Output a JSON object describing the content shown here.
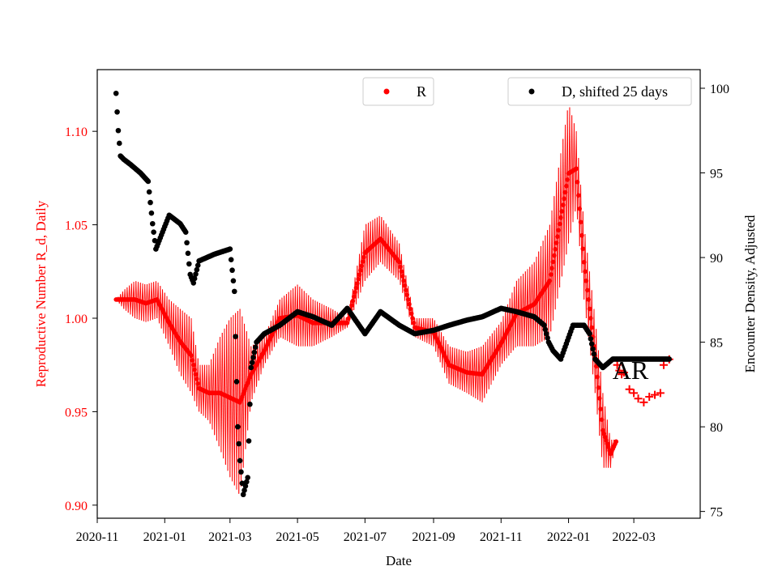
{
  "chart_data": {
    "type": "scatter",
    "xlabel": "Date",
    "ylabel_left": "Reproductive Number R_d, Daily",
    "ylabel_right": "Encounter Density, Adjusted",
    "x_range": [
      "2020-11-01",
      "2022-04-30"
    ],
    "ylim_left": [
      0.893,
      1.133
    ],
    "ylim_right": [
      74.6,
      101.1
    ],
    "x_ticks": [
      "2020-11",
      "2021-01",
      "2021-03",
      "2021-05",
      "2021-07",
      "2021-09",
      "2021-11",
      "2022-01",
      "2022-03"
    ],
    "yticks_left": [
      "0.90",
      "0.95",
      "1.00",
      "1.05",
      "1.10"
    ],
    "yticks_right": [
      "75",
      "80",
      "85",
      "90",
      "95",
      "100"
    ],
    "colors": {
      "R": "#ff0000",
      "D": "#000000",
      "left_axis": "#ff0000"
    },
    "legend_left": {
      "label": "R",
      "placement": "upper-center"
    },
    "legend_right": {
      "label": "D, shifted 25 days",
      "placement": "upper-right"
    },
    "annotation": {
      "text": "AR",
      "date": "2022-02-26",
      "value": 83.4
    },
    "series": [
      {
        "name": "R",
        "axis": "left",
        "marker": "point",
        "oscillation": "daily values alternate between upper and lower envelope",
        "dates": [
          "2020-11-18",
          "2020-11-25",
          "2020-12-05",
          "2020-12-15",
          "2020-12-25",
          "2021-01-05",
          "2021-01-15",
          "2021-01-25",
          "2021-02-01",
          "2021-02-10",
          "2021-02-20",
          "2021-03-01",
          "2021-03-10",
          "2021-03-20",
          "2021-04-01",
          "2021-04-15",
          "2021-05-01",
          "2021-05-15",
          "2021-06-01",
          "2021-06-15",
          "2021-07-01",
          "2021-07-15",
          "2021-08-01",
          "2021-08-15",
          "2021-09-01",
          "2021-09-15",
          "2021-10-01",
          "2021-10-15",
          "2021-11-01",
          "2021-11-15",
          "2021-12-01",
          "2021-12-15",
          "2022-01-01",
          "2022-01-08",
          "2022-01-15",
          "2022-01-25",
          "2022-02-01",
          "2022-02-08",
          "2022-02-13"
        ],
        "upper": [
          1.01,
          1.015,
          1.02,
          1.018,
          1.02,
          1.01,
          1.005,
          1.0,
          0.975,
          0.975,
          0.99,
          1.0,
          1.005,
          0.985,
          0.99,
          1.01,
          1.018,
          1.01,
          1.005,
          1.0,
          1.05,
          1.055,
          1.04,
          1.0,
          1.0,
          0.985,
          0.982,
          0.985,
          0.998,
          1.02,
          1.03,
          1.05,
          1.115,
          1.1,
          1.05,
          1.0,
          0.96,
          0.935,
          0.935
        ],
        "lower": [
          1.01,
          1.005,
          1.0,
          0.998,
          1.0,
          0.985,
          0.97,
          0.96,
          0.95,
          0.945,
          0.93,
          0.915,
          0.905,
          0.955,
          0.975,
          0.99,
          0.985,
          0.985,
          0.99,
          0.995,
          1.02,
          1.03,
          1.02,
          0.99,
          0.985,
          0.965,
          0.96,
          0.955,
          0.975,
          0.985,
          0.985,
          0.99,
          1.04,
          1.06,
          1.01,
          0.96,
          0.92,
          0.92,
          0.933
        ]
      },
      {
        "name": "R (plus markers)",
        "axis": "left",
        "marker": "plus",
        "dates": [
          "2022-02-14",
          "2022-02-16",
          "2022-02-18",
          "2022-02-20",
          "2022-02-25",
          "2022-03-01",
          "2022-03-05",
          "2022-03-10",
          "2022-03-15",
          "2022-03-20",
          "2022-03-25",
          "2022-03-28",
          "2022-04-02"
        ],
        "values": [
          0.975,
          0.972,
          0.97,
          0.971,
          0.962,
          0.96,
          0.957,
          0.955,
          0.958,
          0.959,
          0.96,
          0.975,
          0.978
        ]
      },
      {
        "name": "D, shifted 25 days",
        "axis": "right",
        "marker": "point",
        "dates": [
          "2020-11-18",
          "2020-11-20",
          "2020-11-22",
          "2020-11-25",
          "2020-12-01",
          "2020-12-10",
          "2020-12-17",
          "2020-12-21",
          "2020-12-24",
          "2021-01-05",
          "2021-01-15",
          "2021-01-20",
          "2021-01-24",
          "2021-01-27",
          "2021-02-01",
          "2021-02-15",
          "2021-03-01",
          "2021-03-05",
          "2021-03-08",
          "2021-03-10",
          "2021-03-13",
          "2021-03-17",
          "2021-03-20",
          "2021-03-25",
          "2021-04-01",
          "2021-04-15",
          "2021-05-01",
          "2021-05-15",
          "2021-06-01",
          "2021-06-15",
          "2021-07-01",
          "2021-07-15",
          "2021-08-01",
          "2021-08-15",
          "2021-09-01",
          "2021-09-15",
          "2021-10-01",
          "2021-10-15",
          "2021-11-01",
          "2021-11-15",
          "2021-12-01",
          "2021-12-10",
          "2021-12-14",
          "2021-12-18",
          "2021-12-25",
          "2022-01-05",
          "2022-01-15",
          "2022-01-20",
          "2022-01-25",
          "2022-02-01",
          "2022-02-10",
          "2022-02-20",
          "2022-03-01",
          "2022-03-15",
          "2022-04-02"
        ],
        "values": [
          99.7,
          97.5,
          96.0,
          95.8,
          95.5,
          95.0,
          94.5,
          92.0,
          90.5,
          92.5,
          92.0,
          91.5,
          89.0,
          88.5,
          89.8,
          90.2,
          90.5,
          88.0,
          80.0,
          78.0,
          76.0,
          77.0,
          83.5,
          85.0,
          85.5,
          86.0,
          86.8,
          86.5,
          86.0,
          87.0,
          85.5,
          86.8,
          86.0,
          85.5,
          85.7,
          86.0,
          86.3,
          86.5,
          87.0,
          86.8,
          86.5,
          86.0,
          85.0,
          84.5,
          84.0,
          86.0,
          86.0,
          85.5,
          84.0,
          83.5,
          84.0,
          84.0,
          84.0,
          84.0,
          84.0
        ]
      }
    ]
  }
}
